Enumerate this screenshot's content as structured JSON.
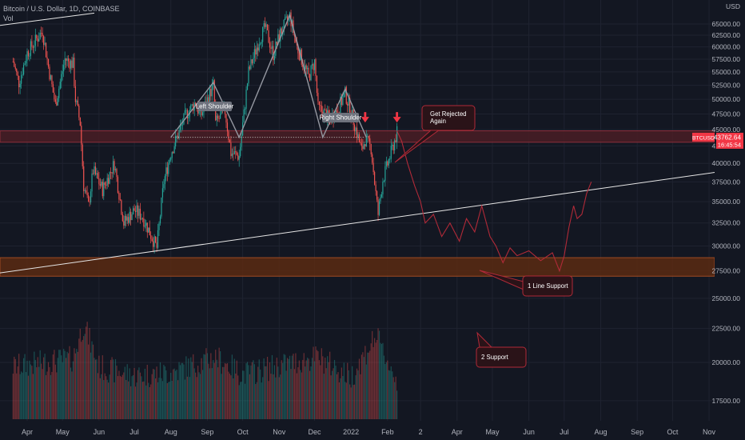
{
  "header": {
    "symbol_line": "Bitcoin / U.S. Dollar, 1D, COINBASE",
    "volume_label": "Vol"
  },
  "chart_data": {
    "type": "candlestick",
    "symbol": "BTCUSD",
    "currency": "USD",
    "interval": "1D",
    "ylim": [
      16500,
      67200
    ],
    "y_scale": "log",
    "y_ticks": [
      "17500.00",
      "20000.00",
      "22500.00",
      "25000.00",
      "27500.00",
      "30000.00",
      "32500.00",
      "35000.00",
      "37500.00",
      "40000.00",
      "42500.00",
      "45000.00",
      "47500.00",
      "50000.00",
      "52500.00",
      "55000.00",
      "57500.00",
      "60000.00",
      "62500.00",
      "65000.00"
    ],
    "x_ticks": [
      {
        "label": "Apr",
        "date": "2021-04-01"
      },
      {
        "label": "May",
        "date": "2021-05-01"
      },
      {
        "label": "Jun",
        "date": "2021-06-01"
      },
      {
        "label": "Jul",
        "date": "2021-07-01"
      },
      {
        "label": "Aug",
        "date": "2021-08-01"
      },
      {
        "label": "Sep",
        "date": "2021-09-01"
      },
      {
        "label": "Oct",
        "date": "2021-10-01"
      },
      {
        "label": "Nov",
        "date": "2021-11-01"
      },
      {
        "label": "Dec",
        "date": "2021-12-01"
      },
      {
        "label": "2022",
        "date": "2022-01-01"
      },
      {
        "label": "Feb",
        "date": "2022-02-01"
      },
      {
        "label": "2",
        "date": "2022-03-01"
      },
      {
        "label": "Apr",
        "date": "2022-04-01"
      },
      {
        "label": "May",
        "date": "2022-05-01"
      },
      {
        "label": "Jun",
        "date": "2022-06-01"
      },
      {
        "label": "Jul",
        "date": "2022-07-01"
      },
      {
        "label": "Aug",
        "date": "2022-08-01"
      },
      {
        "label": "Sep",
        "date": "2022-09-01"
      },
      {
        "label": "Oct",
        "date": "2022-10-01"
      },
      {
        "label": "Nov",
        "date": "2022-11-01"
      }
    ],
    "price_path": [
      [
        "2021-03-20",
        57000
      ],
      [
        "2021-03-25",
        53000
      ],
      [
        "2021-04-01",
        58800
      ],
      [
        "2021-04-14",
        63500
      ],
      [
        "2021-04-19",
        56000
      ],
      [
        "2021-04-25",
        49000
      ],
      [
        "2021-05-03",
        57500
      ],
      [
        "2021-05-10",
        56500
      ],
      [
        "2021-05-12",
        50000
      ],
      [
        "2021-05-16",
        46000
      ],
      [
        "2021-05-19",
        37000
      ],
      [
        "2021-05-23",
        34500
      ],
      [
        "2021-05-27",
        39000
      ],
      [
        "2021-06-04",
        36500
      ],
      [
        "2021-06-14",
        40000
      ],
      [
        "2021-06-22",
        32500
      ],
      [
        "2021-07-01",
        34000
      ],
      [
        "2021-07-08",
        33200
      ],
      [
        "2021-07-20",
        29800
      ],
      [
        "2021-07-26",
        37500
      ],
      [
        "2021-08-01",
        41500
      ],
      [
        "2021-08-14",
        47500
      ],
      [
        "2021-08-22",
        49500
      ],
      [
        "2021-08-26",
        47000
      ],
      [
        "2021-09-06",
        52500
      ],
      [
        "2021-09-08",
        46000
      ],
      [
        "2021-09-16",
        48000
      ],
      [
        "2021-09-21",
        41500
      ],
      [
        "2021-09-28",
        41000
      ],
      [
        "2021-10-06",
        55000
      ],
      [
        "2021-10-15",
        61500
      ],
      [
        "2021-10-20",
        64200
      ],
      [
        "2021-10-27",
        58500
      ],
      [
        "2021-11-02",
        63000
      ],
      [
        "2021-11-10",
        66900
      ],
      [
        "2021-11-16",
        60000
      ],
      [
        "2021-11-20",
        57500
      ],
      [
        "2021-11-26",
        54000
      ],
      [
        "2021-12-01",
        57000
      ],
      [
        "2021-12-04",
        48500
      ],
      [
        "2021-12-10",
        47500
      ],
      [
        "2021-12-14",
        46500
      ],
      [
        "2021-12-22",
        48800
      ],
      [
        "2021-12-27",
        51000
      ],
      [
        "2022-01-03",
        46500
      ],
      [
        "2022-01-10",
        41800
      ],
      [
        "2022-01-13",
        43500
      ],
      [
        "2022-01-18",
        42200
      ],
      [
        "2022-01-22",
        36000
      ],
      [
        "2022-01-24",
        33500
      ],
      [
        "2022-01-28",
        37800
      ],
      [
        "2022-02-04",
        41500
      ],
      [
        "2022-02-09",
        44500
      ]
    ],
    "volume_envelope": [
      [
        "2021-03-20",
        20200
      ],
      [
        "2021-05-10",
        20800
      ],
      [
        "2021-05-19",
        23500
      ],
      [
        "2021-06-01",
        20200
      ],
      [
        "2021-07-01",
        19600
      ],
      [
        "2021-08-01",
        19800
      ],
      [
        "2021-09-08",
        20900
      ],
      [
        "2021-10-01",
        19700
      ],
      [
        "2021-11-01",
        20300
      ],
      [
        "2021-12-04",
        20900
      ],
      [
        "2022-01-01",
        19500
      ],
      [
        "2022-01-22",
        22500
      ],
      [
        "2022-02-09",
        19200
      ]
    ],
    "current_price": {
      "symbol_label": "BTCUSD",
      "price": "43762.64",
      "countdown": "16:45:54",
      "value": 43762.64
    },
    "resistance_zone": [
      43050,
      44800
    ],
    "support_zone": [
      27000,
      28800
    ],
    "neckline": {
      "value": 43800,
      "from": "2021-08-01",
      "to": "2022-01-13"
    },
    "rising_support_line": [
      [
        "2021-02-17",
        27000
      ],
      [
        "2022-11-30",
        39300
      ]
    ],
    "upper_trendline": [
      [
        "2021-02-17",
        64000
      ],
      [
        "2021-05-28",
        67500
      ]
    ],
    "head_and_shoulders": [
      [
        "2021-08-01",
        43800
      ],
      [
        "2021-09-06",
        53000
      ],
      [
        "2021-09-28",
        43800
      ],
      [
        "2021-11-10",
        67000
      ],
      [
        "2021-12-08",
        43800
      ],
      [
        "2021-12-27",
        51800
      ],
      [
        "2022-01-14",
        43800
      ]
    ],
    "projection_path": [
      [
        "2022-02-09",
        44800
      ],
      [
        "2022-02-13",
        43200
      ],
      [
        "2022-02-18",
        40000
      ],
      [
        "2022-02-24",
        37000
      ],
      [
        "2022-03-01",
        35000
      ],
      [
        "2022-03-05",
        32500
      ],
      [
        "2022-03-12",
        33500
      ],
      [
        "2022-03-19",
        31000
      ],
      [
        "2022-03-26",
        32500
      ],
      [
        "2022-04-03",
        30500
      ],
      [
        "2022-04-09",
        33000
      ],
      [
        "2022-04-16",
        31500
      ],
      [
        "2022-04-22",
        34500
      ],
      [
        "2022-04-29",
        31000
      ],
      [
        "2022-05-04",
        30000
      ],
      [
        "2022-05-10",
        28300
      ],
      [
        "2022-05-16",
        29800
      ],
      [
        "2022-05-22",
        29000
      ],
      [
        "2022-06-01",
        29500
      ],
      [
        "2022-06-11",
        28500
      ],
      [
        "2022-06-21",
        29300
      ],
      [
        "2022-06-27",
        27500
      ],
      [
        "2022-07-01",
        29000
      ],
      [
        "2022-07-05",
        32000
      ],
      [
        "2022-07-09",
        34500
      ],
      [
        "2022-07-12",
        33000
      ],
      [
        "2022-07-16",
        33500
      ],
      [
        "2022-07-20",
        36000
      ],
      [
        "2022-07-24",
        37500
      ]
    ],
    "annotations": [
      {
        "text": "Left Shoulder",
        "date": "2021-09-06",
        "price": 53000,
        "style": "label"
      },
      {
        "text": "Right Shoulder",
        "date": "2021-12-27",
        "price": 51800,
        "style": "label"
      },
      {
        "text": "Get Rejected\nAgain",
        "style": "callout"
      },
      {
        "text": "1 Line Support",
        "style": "callout"
      },
      {
        "text": "2 Support",
        "style": "callout"
      }
    ],
    "arrows": [
      {
        "date": "2022-01-13",
        "price": 46500
      },
      {
        "date": "2022-02-09",
        "price": 46500
      }
    ],
    "colors": {
      "background": "#131722",
      "grid": "#1f2330",
      "bull": "#26a69a",
      "bear": "#ef5350",
      "projection": "#b02a38",
      "resistance_fill": "#4a1d24",
      "support_fill": "#5a2a12",
      "trendline": "#e6e6e6",
      "pattern": "#9598a1",
      "price_tag": "#f23645"
    }
  }
}
